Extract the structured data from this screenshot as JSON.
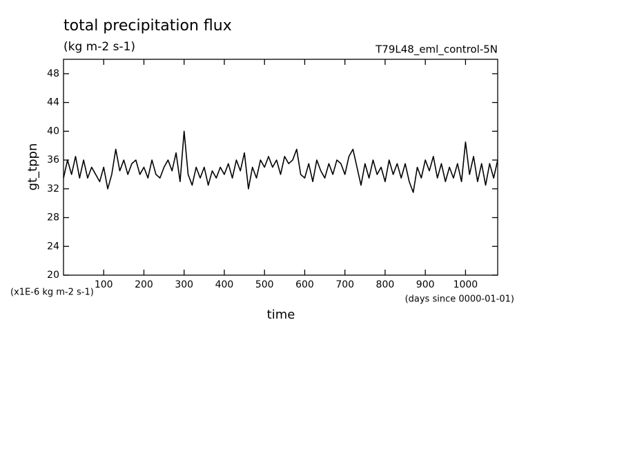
{
  "chart_data": {
    "type": "line",
    "title": "total precipitation flux",
    "subtitle": "(kg m-2 s-1)",
    "experiment": "T79L48_eml_control-5N",
    "y_label": "gt_tppn",
    "x_label": "time",
    "y_unit_note": "(x1E-6 kg m-2 s-1)",
    "x_unit_note": "(days since 0000-01-01)",
    "xlim": [
      0,
      1080
    ],
    "ylim": [
      20,
      50
    ],
    "xticks": [
      100,
      200,
      300,
      400,
      500,
      600,
      700,
      800,
      900,
      1000
    ],
    "yticks": [
      20,
      24,
      28,
      32,
      36,
      40,
      44,
      48
    ],
    "x": [
      0,
      10,
      20,
      30,
      40,
      50,
      60,
      70,
      80,
      90,
      100,
      110,
      120,
      130,
      140,
      150,
      160,
      170,
      180,
      190,
      200,
      210,
      220,
      230,
      240,
      250,
      260,
      270,
      280,
      290,
      300,
      310,
      320,
      330,
      340,
      350,
      360,
      370,
      380,
      390,
      400,
      410,
      420,
      430,
      440,
      450,
      460,
      470,
      480,
      490,
      500,
      510,
      520,
      530,
      540,
      550,
      560,
      570,
      580,
      590,
      600,
      610,
      620,
      630,
      640,
      650,
      660,
      670,
      680,
      690,
      700,
      710,
      720,
      730,
      740,
      750,
      760,
      770,
      780,
      790,
      800,
      810,
      820,
      830,
      840,
      850,
      860,
      870,
      880,
      890,
      900,
      910,
      920,
      930,
      940,
      950,
      960,
      970,
      980,
      990,
      1000,
      1010,
      1020,
      1030,
      1040,
      1050,
      1060,
      1070,
      1080
    ],
    "series": [
      {
        "color": "#000000",
        "values": [
          33.5,
          36,
          34,
          36.5,
          33.5,
          36,
          33.5,
          35,
          34,
          33,
          35,
          32,
          34,
          37.5,
          34.5,
          36,
          34,
          35.5,
          36,
          34,
          35,
          33.5,
          36,
          34,
          33.5,
          35,
          36,
          34.5,
          37,
          33,
          40,
          34,
          32.5,
          35,
          33.5,
          35,
          32.5,
          34.5,
          33.5,
          35,
          34,
          35.5,
          33.5,
          36,
          34.5,
          37,
          32,
          35,
          33.5,
          36,
          35,
          36.5,
          35,
          36,
          34,
          36.5,
          35.5,
          36,
          37.5,
          34,
          33.5,
          35.5,
          33,
          36,
          34.5,
          33.5,
          35.5,
          34,
          36,
          35.5,
          34,
          36.5,
          37.5,
          35,
          32.5,
          35.5,
          33.5,
          36,
          34,
          35,
          33,
          36,
          34,
          35.5,
          33.5,
          35.5,
          33,
          31.5,
          35,
          33.5,
          36,
          34.5,
          36.5,
          33.5,
          35.5,
          33,
          35,
          33.5,
          35.5,
          33,
          38.5,
          34,
          36.5,
          33,
          35.5,
          32.5,
          35.5,
          33.5,
          36
        ]
      }
    ]
  }
}
